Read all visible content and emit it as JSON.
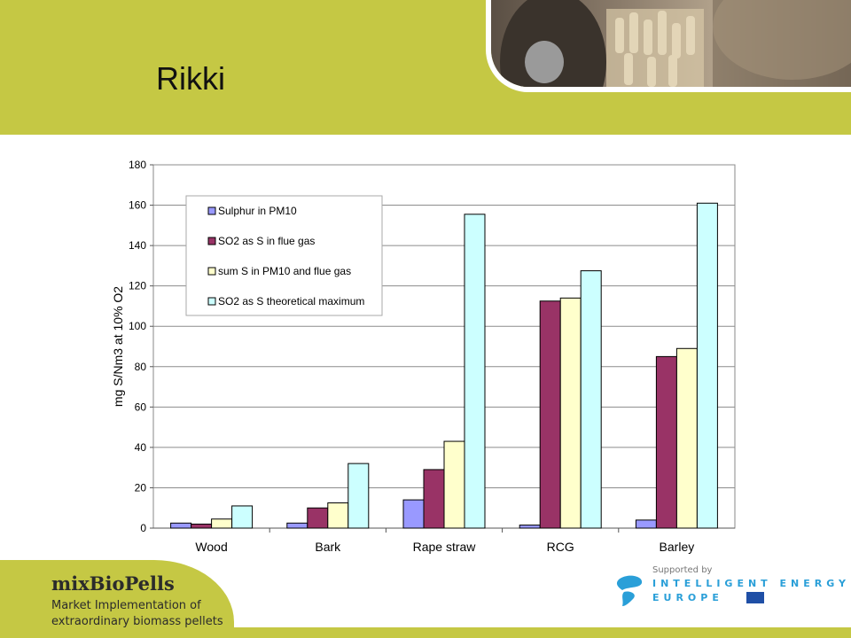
{
  "slide": {
    "title": "Rikki"
  },
  "footer": {
    "brand": "mixBioPells",
    "tagline_line1": "Market Implementation of",
    "tagline_line2": "extraordinary biomass pellets",
    "supported_by": "Supported by",
    "iee_line1": "INTELLIGENT ENERGY",
    "iee_line2": "EUROPE"
  },
  "colors": {
    "band": "#c5c844",
    "accent": "#2a9fd8"
  },
  "chart_data": {
    "type": "bar",
    "title": "",
    "xlabel": "",
    "ylabel": "mg S/Nm3 at 10% O2",
    "ylim": [
      0,
      180
    ],
    "yticks": [
      0,
      20,
      40,
      60,
      80,
      100,
      120,
      140,
      160,
      180
    ],
    "grid": true,
    "legend_position": "top-left inside",
    "categories": [
      "Wood",
      "Bark",
      "Rape straw",
      "RCG",
      "Barley"
    ],
    "series": [
      {
        "name": "Sulphur in PM10",
        "color": "#9999ff",
        "values": [
          2.5,
          2.5,
          14,
          1.5,
          4
        ]
      },
      {
        "name": "SO2 as S in flue gas",
        "color": "#993366",
        "values": [
          2,
          10,
          29,
          112.5,
          85
        ]
      },
      {
        "name": "sum S in PM10 and flue gas",
        "color": "#ffffcc",
        "values": [
          4.5,
          12.5,
          43,
          114,
          89
        ]
      },
      {
        "name": "SO2 as S theoretical maximum",
        "color": "#ccffff",
        "values": [
          11,
          32,
          155.5,
          127.5,
          161
        ]
      }
    ]
  }
}
